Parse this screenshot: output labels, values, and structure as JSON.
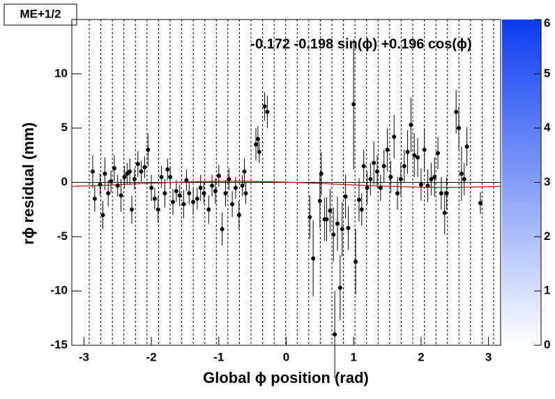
{
  "chart_data": {
    "type": "scatter",
    "title": "ME+1/2",
    "x_label": "Global ϕ position (rad)",
    "y_label": "rϕ residual (mm)",
    "annotation": "-0.172 -0.198 sin(ϕ) +0.196 cos(ϕ)",
    "fit_params": [
      -0.172,
      -0.198,
      0.196
    ],
    "fit_color": "#cc0000",
    "xlim": [
      -3.18,
      3.18
    ],
    "ylim": [
      -15,
      15
    ],
    "xticks": [
      -3,
      -2,
      -1,
      0,
      1,
      2,
      3
    ],
    "yticks": [
      -15,
      -10,
      -5,
      0,
      5,
      10
    ],
    "zlim": [
      0,
      6
    ],
    "zticks": [
      0,
      1,
      2,
      3,
      4,
      5,
      6
    ],
    "z_colors": [
      "#ffffff",
      "#0a3cf0"
    ],
    "series": [
      {
        "color": "#000000",
        "x": [
          -2.87,
          -2.84,
          -2.76,
          -2.72,
          -2.69,
          -2.64,
          -2.6,
          -2.55,
          -2.5,
          -2.45,
          -2.4,
          -2.36,
          -2.32,
          -2.29,
          -2.25,
          -2.2,
          -2.15,
          -2.1,
          -2.05,
          -2.0,
          -1.95,
          -1.9,
          -1.85,
          -1.8,
          -1.76,
          -1.72,
          -1.68,
          -1.63,
          -1.58,
          -1.52,
          -1.48,
          -1.44,
          -1.38,
          -1.32,
          -1.27,
          -1.22,
          -1.15,
          -1.1,
          -1.05,
          -1.0,
          -0.95,
          -0.9,
          -0.85,
          -0.8,
          -0.75,
          -0.7,
          -0.65,
          -0.62,
          -0.6,
          -0.45,
          -0.42,
          -0.4,
          -0.32,
          -0.28,
          0.35,
          0.4,
          0.5,
          0.52,
          0.57,
          0.6,
          0.65,
          0.7,
          0.72,
          0.76,
          0.8,
          0.83,
          0.88,
          0.92,
          1.0,
          1.03,
          1.08,
          1.12,
          1.15,
          1.2,
          1.25,
          1.3,
          1.35,
          1.4,
          1.45,
          1.5,
          1.55,
          1.6,
          1.65,
          1.7,
          1.75,
          1.8,
          1.85,
          1.9,
          1.95,
          2.0,
          2.05,
          2.1,
          2.15,
          2.2,
          2.25,
          2.3,
          2.35,
          2.38,
          2.52,
          2.56,
          2.6,
          2.64,
          2.68,
          2.88
        ],
        "values": [
          1.0,
          -1.5,
          -0.2,
          -3.0,
          0.8,
          -1.0,
          0.1,
          1.3,
          -0.3,
          -1.2,
          0.5,
          0.8,
          1.0,
          -2.5,
          0.3,
          1.7,
          1.0,
          1.4,
          3.0,
          -0.5,
          -1.5,
          -2.5,
          0.5,
          -1.0,
          1.2,
          0.5,
          -1.8,
          -0.8,
          -1.2,
          -2.0,
          0.2,
          -1.0,
          -1.8,
          -1.5,
          -0.5,
          -1.0,
          -2.5,
          -0.3,
          -0.8,
          0.6,
          -4.3,
          -1.0,
          0.3,
          -2.0,
          -0.5,
          -3.0,
          -0.3,
          1.0,
          -1.0,
          3.5,
          4.0,
          2.8,
          7.0,
          6.5,
          -3.2,
          -7.0,
          -1.7,
          0.8,
          -3.4,
          -3.4,
          -2.6,
          -4.8,
          -14.0,
          -3.8,
          -9.7,
          -4.3,
          -1.3,
          -4.2,
          7.2,
          -7.3,
          -1.6,
          -2.5,
          1.5,
          -0.5,
          0.3,
          1.8,
          1.0,
          -0.5,
          1.5,
          3.0,
          0.5,
          4.2,
          -1.0,
          0.3,
          1.5,
          2.8,
          5.3,
          2.5,
          2.3,
          -0.2,
          3.0,
          -0.3,
          0.3,
          0.5,
          2.7,
          -1.0,
          -2.8,
          -1.0,
          6.5,
          5.0,
          0.8,
          0.3,
          3.3,
          -1.9
        ],
        "errors": [
          1.5,
          1.2,
          1.0,
          1.3,
          1.5,
          1.2,
          1.0,
          1.2,
          1.0,
          1.5,
          1.0,
          1.0,
          1.2,
          1.3,
          1.0,
          1.2,
          1.0,
          1.0,
          1.5,
          1.2,
          1.0,
          1.2,
          1.0,
          1.3,
          1.0,
          1.0,
          1.2,
          1.0,
          1.0,
          1.3,
          1.0,
          1.0,
          1.2,
          1.0,
          1.2,
          1.0,
          1.3,
          1.0,
          1.2,
          1.0,
          1.5,
          1.2,
          1.0,
          1.2,
          1.0,
          1.3,
          1.0,
          1.2,
          1.0,
          1.5,
          1.2,
          1.0,
          1.3,
          1.5,
          2.0,
          3.5,
          2.5,
          2.0,
          2.0,
          2.0,
          2.0,
          2.5,
          4,
          2.5,
          3.0,
          2.5,
          2.0,
          2.0,
          6.0,
          3.0,
          2.0,
          1.5,
          1.5,
          1.5,
          1.5,
          2.0,
          1.5,
          1.2,
          1.5,
          2.0,
          1.5,
          2.0,
          1.5,
          1.5,
          1.5,
          2.0,
          2.5,
          2.0,
          1.8,
          1.5,
          2.0,
          1.5,
          1.5,
          1.8,
          1.5,
          1.5,
          2.0,
          1.5,
          2.0,
          2.0,
          2.5,
          1.5,
          1.8,
          1.0
        ]
      }
    ]
  }
}
